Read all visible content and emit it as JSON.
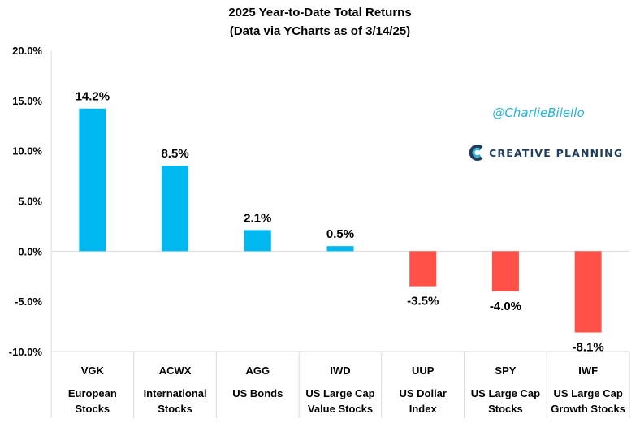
{
  "title": "2025 Year-to-Date Total Returns",
  "subtitle": "(Data via YCharts as of 3/14/25)",
  "handle": "@CharlieBilello",
  "brand": "CREATIVE PLANNING",
  "chart_data": {
    "type": "bar",
    "categories": [
      {
        "ticker": "VGK",
        "label": [
          "European",
          "Stocks"
        ]
      },
      {
        "ticker": "ACWX",
        "label": [
          "International",
          "Stocks"
        ]
      },
      {
        "ticker": "AGG",
        "label": [
          "US Bonds"
        ]
      },
      {
        "ticker": "IWD",
        "label": [
          "US Large Cap",
          "Value Stocks"
        ]
      },
      {
        "ticker": "UUP",
        "label": [
          "US Dollar",
          "Index"
        ]
      },
      {
        "ticker": "SPY",
        "label": [
          "US Large Cap",
          "Stocks"
        ]
      },
      {
        "ticker": "IWF",
        "label": [
          "US Large Cap",
          "Growth Stocks"
        ]
      }
    ],
    "values": [
      14.2,
      8.5,
      2.1,
      0.5,
      -3.5,
      -4.0,
      -8.1
    ],
    "data_labels": [
      "14.2%",
      "8.5%",
      "2.1%",
      "0.5%",
      "-3.5%",
      "-4.0%",
      "-8.1%"
    ],
    "yticks": [
      "-10.0%",
      "-5.0%",
      "0.0%",
      "5.0%",
      "10.0%",
      "15.0%",
      "20.0%"
    ],
    "ylim": [
      -10,
      20
    ],
    "colors": {
      "positive": "#00b8f0",
      "negative": "#ff5148"
    },
    "grid": false
  }
}
